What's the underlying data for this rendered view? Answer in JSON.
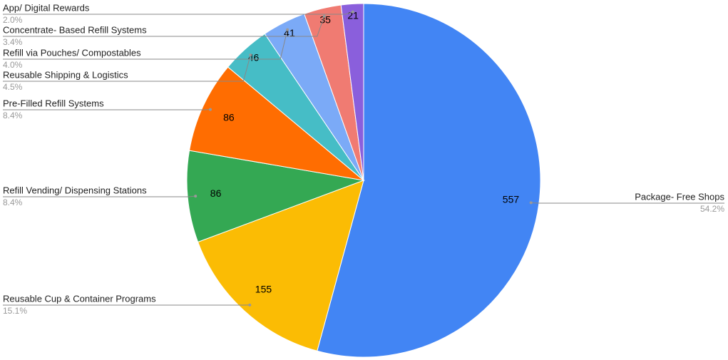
{
  "chart_data": {
    "type": "pie",
    "categories": [
      "Package- Free Shops",
      "Reusable Cup & Container Programs",
      "Refill Vending/ Dispensing Stations",
      "Pre-Filled Refill Systems",
      "Reusable Shipping & Logistics",
      "Refill via Pouches/ Compostables",
      "Concentrate- Based Refill Systems",
      "App/ Digital Rewards"
    ],
    "values": [
      557,
      155,
      86,
      86,
      46,
      41,
      35,
      21
    ],
    "percent_labels": [
      "54.2%",
      "15.1%",
      "8.4%",
      "8.4%",
      "4.5%",
      "4.0%",
      "3.4%",
      "2.0%"
    ],
    "colors": [
      "#4285f4",
      "#fbbc04",
      "#34a853",
      "#ff6d01",
      "#46bdc6",
      "#7baaf7",
      "#f07b72",
      "#8a5fdc"
    ]
  }
}
